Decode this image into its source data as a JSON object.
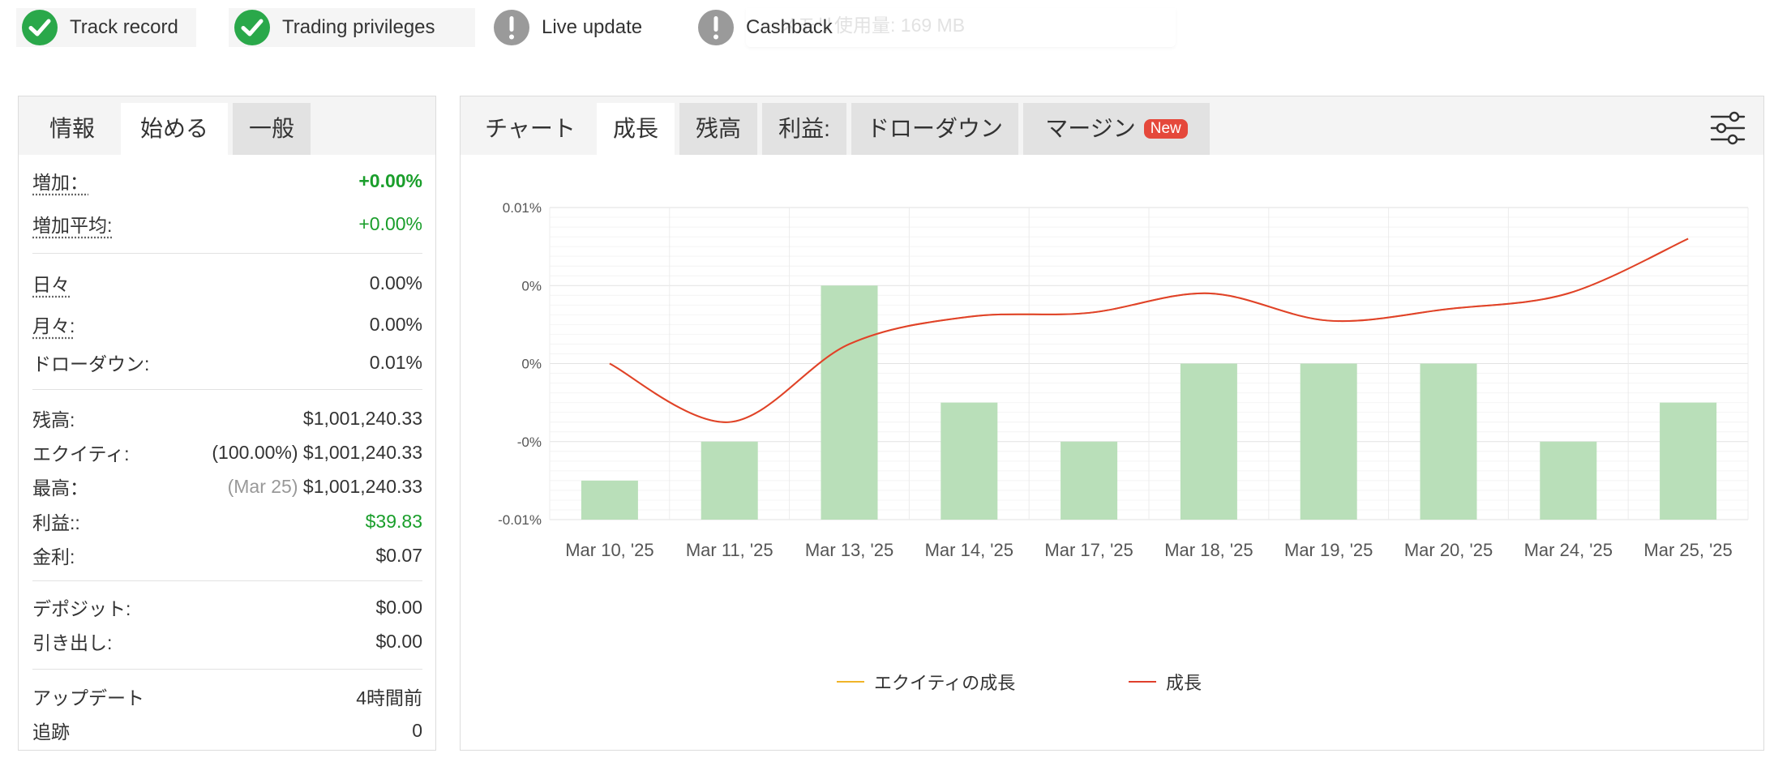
{
  "badges": [
    {
      "label": "Track record",
      "status": "ok",
      "icon": "check-circle-icon"
    },
    {
      "label": "Trading privileges",
      "status": "ok",
      "icon": "check-circle-icon"
    },
    {
      "label": "Live update",
      "status": "warn",
      "icon": "exclamation-circle-icon"
    },
    {
      "label": "Cashback",
      "status": "warn",
      "icon": "exclamation-circle-icon"
    }
  ],
  "ghost_text": "メモリ使用量: 169 MB",
  "colors": {
    "ok": "#2aa84a",
    "warn": "#9a9a9a",
    "bar": "#b9dfb9",
    "line": "#e0402c",
    "equity": "#f0b429",
    "accent_green": "#1a9e2b",
    "new_badge": "#e5483b"
  },
  "left_panel": {
    "tabs": [
      "情報",
      "始める",
      "一般"
    ],
    "stats": {
      "gain_label": "増加：",
      "gain_value": "+0.00%",
      "avg_gain_label": "増加平均:",
      "avg_gain_value": "+0.00%",
      "daily_label": "日々",
      "daily_value": "0.00%",
      "monthly_label": "月々:",
      "monthly_value": "0.00%",
      "drawdown_label": "ドローダウン:",
      "drawdown_value": "0.01%",
      "balance_label": "残高:",
      "balance_value": "$1,001,240.33",
      "equity_label": "エクイティ:",
      "equity_pct": "(100.00%)",
      "equity_value": "$1,001,240.33",
      "highest_label": "最高：",
      "highest_date": "(Mar 25)",
      "highest_value": "$1,001,240.33",
      "profit_label": "利益::",
      "profit_value": "$39.83",
      "interest_label": "金利:",
      "interest_value": "$0.07",
      "deposits_label": "デポジット:",
      "deposits_value": "$0.00",
      "withdrawals_label": "引き出し:",
      "withdrawals_value": "$0.00",
      "updated_label": "アップデート",
      "updated_value": "4時間前",
      "tracking_label": "追跡",
      "tracking_value": "0"
    }
  },
  "right_panel": {
    "tabs": [
      "チャート",
      "成長",
      "残高",
      "利益:",
      "ドローダウン",
      "マージン"
    ],
    "new_badge": "New",
    "settings_icon": "sliders-icon"
  },
  "chart_data": {
    "type": "bar",
    "categories": [
      "Mar 10, '25",
      "Mar 11, '25",
      "Mar 13, '25",
      "Mar 14, '25",
      "Mar 17, '25",
      "Mar 18, '25",
      "Mar 19, '25",
      "Mar 20, '25",
      "Mar 24, '25",
      "Mar 25, '25"
    ],
    "y_tick_labels": [
      "0.01%",
      "0%",
      "0%",
      "-0%",
      "-0.01%"
    ],
    "ylim": [
      -0.01,
      0.01
    ],
    "grid": true,
    "legend_position": "bottom",
    "series": [
      {
        "name": "エクイティの成長",
        "type": "line",
        "color": "#f0b429",
        "values": [
          0.0,
          -0.00375,
          0.00125,
          0.003,
          0.00325,
          0.0045,
          0.00275,
          0.0035,
          0.0045,
          0.008
        ]
      },
      {
        "name": "成長",
        "type": "line",
        "color": "#e0402c",
        "values": [
          0.0,
          -0.00375,
          0.00125,
          0.003,
          0.00325,
          0.0045,
          0.00275,
          0.0035,
          0.0045,
          0.008
        ]
      },
      {
        "type": "bar",
        "color": "#b9dfb9",
        "values": [
          -0.0075,
          -0.005,
          0.005,
          -0.0025,
          -0.005,
          0.0,
          0.0,
          0.0,
          -0.005,
          -0.0025
        ]
      }
    ]
  }
}
